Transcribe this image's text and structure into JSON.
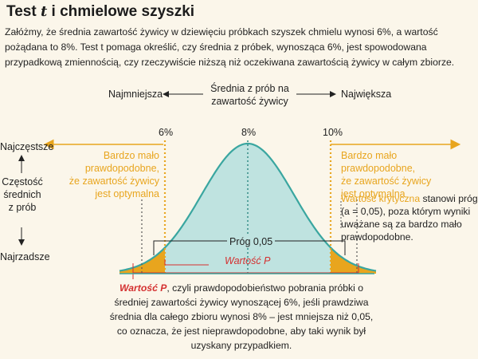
{
  "title": {
    "prefix": "Test ",
    "italic": "t",
    "suffix": " i chmielowe szyszki"
  },
  "intro_text": "Załóżmy, że średnia zawartość żywicy w dziewięciu próbkach szyszek chmielu wynosi 6%, a wartość pożądana to 8%. Test t pomaga określić, czy średnia z próbek, wynosząca 6%, jest spowodowana przypadkową zmiennością, czy rzeczywiście niższą niż oczekiwana zawartością żywicy w całym zbiorze.",
  "x_axis": {
    "left": "Najmniejsza",
    "center_line1": "Średnia z prób na",
    "center_line2": "zawartość żywicy",
    "right": "Największa"
  },
  "y_axis": {
    "top": "Najczęstsze",
    "mid1": "Częstość",
    "mid2": "średnich",
    "mid3": "z prób",
    "bottom": "Najrzadsze"
  },
  "markers": {
    "left": "6%",
    "center": "8%",
    "right": "10%"
  },
  "left_note": {
    "l1": "Bardzo mało",
    "l2": "prawdopodobne,",
    "l3": "że zawartość żywicy",
    "l4": "jest optymalna"
  },
  "right_note": {
    "l1": "Bardzo mało",
    "l2": "prawdopodobne,",
    "l3": "że zawartość żywicy",
    "l4": "jest optymalna"
  },
  "threshold_label": "Próg 0,05",
  "pvalue_label": "Wartość P",
  "critical": {
    "highlight": "Wartość krytyczna",
    "rest": " stanowi próg (a = 0,05), poza którym wyniki uważane są za bardzo mało prawdopodobne."
  },
  "pnote": {
    "highlight": "Wartość P",
    "rest": ", czyli prawdopodobieństwo pobrania próbki o średniej zawartości żywicy wynoszącej 6%, jeśli prawdziwa średnia dla całego zbioru wynosi 8% – jest mniejsza niż 0,05, co oznacza, że jest nieprawdopodobne, aby taki wynik był uzyskany przypadkiem."
  },
  "colors": {
    "curve_fill": "#bfe3e0",
    "curve_stroke": "#3aa6a0",
    "accent_orange": "#e8a51e",
    "accent_red": "#d43030",
    "background": "#fbf6ea"
  }
}
